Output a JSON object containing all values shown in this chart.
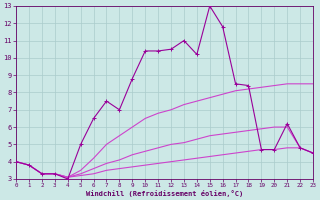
{
  "series_main": {
    "x": [
      0,
      1,
      2,
      3,
      4,
      5,
      6,
      7,
      8,
      9,
      10,
      11,
      12,
      13,
      14,
      15,
      16,
      17,
      18,
      19,
      20,
      21,
      22,
      23
    ],
    "y": [
      4.0,
      3.8,
      3.3,
      3.3,
      3.0,
      5.0,
      6.5,
      7.5,
      7.0,
      8.8,
      10.4,
      10.4,
      10.5,
      11.0,
      10.2,
      13.0,
      11.8,
      8.5,
      8.4,
      4.7,
      4.7,
      6.2,
      4.8,
      4.5
    ],
    "color": "#990099",
    "lw": 0.8,
    "marker": "+"
  },
  "fan_lines": [
    {
      "x": [
        0,
        1,
        2,
        3,
        4,
        5,
        6,
        7,
        8,
        9,
        10,
        11,
        12,
        13,
        14,
        15,
        16,
        17,
        18,
        19,
        20,
        21,
        22,
        23
      ],
      "y": [
        4.0,
        3.8,
        3.3,
        3.3,
        3.1,
        3.5,
        4.2,
        5.0,
        5.5,
        6.0,
        6.5,
        6.8,
        7.0,
        7.3,
        7.5,
        7.7,
        7.9,
        8.1,
        8.2,
        8.3,
        8.4,
        8.5,
        8.5,
        8.5
      ],
      "color": "#cc44cc",
      "lw": 0.8
    },
    {
      "x": [
        0,
        1,
        2,
        3,
        4,
        5,
        6,
        7,
        8,
        9,
        10,
        11,
        12,
        13,
        14,
        15,
        16,
        17,
        18,
        19,
        20,
        21,
        22,
        23
      ],
      "y": [
        4.0,
        3.8,
        3.3,
        3.3,
        3.1,
        3.3,
        3.6,
        3.9,
        4.1,
        4.4,
        4.6,
        4.8,
        5.0,
        5.1,
        5.3,
        5.5,
        5.6,
        5.7,
        5.8,
        5.9,
        6.0,
        6.0,
        4.8,
        4.5
      ],
      "color": "#cc44cc",
      "lw": 0.8
    },
    {
      "x": [
        0,
        1,
        2,
        3,
        4,
        5,
        6,
        7,
        8,
        9,
        10,
        11,
        12,
        13,
        14,
        15,
        16,
        17,
        18,
        19,
        20,
        21,
        22,
        23
      ],
      "y": [
        4.0,
        3.8,
        3.3,
        3.3,
        3.1,
        3.2,
        3.3,
        3.5,
        3.6,
        3.7,
        3.8,
        3.9,
        4.0,
        4.1,
        4.2,
        4.3,
        4.4,
        4.5,
        4.6,
        4.7,
        4.7,
        4.8,
        4.8,
        4.5
      ],
      "color": "#cc44cc",
      "lw": 0.8
    }
  ],
  "xlim": [
    0,
    23
  ],
  "ylim": [
    3,
    13
  ],
  "xticks": [
    0,
    1,
    2,
    3,
    4,
    5,
    6,
    7,
    8,
    9,
    10,
    11,
    12,
    13,
    14,
    15,
    16,
    17,
    18,
    19,
    20,
    21,
    22,
    23
  ],
  "yticks": [
    3,
    4,
    5,
    6,
    7,
    8,
    9,
    10,
    11,
    12,
    13
  ],
  "xlabel": "Windchill (Refroidissement éolien,°C)",
  "background_color": "#cce8e6",
  "grid_color": "#aacccc",
  "tick_color": "#660066",
  "label_color": "#660066",
  "figsize": [
    3.2,
    2.0
  ],
  "dpi": 100
}
